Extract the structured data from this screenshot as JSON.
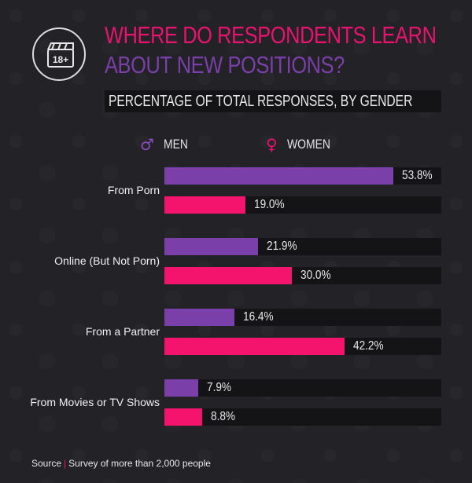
{
  "title_line1": "WHERE DO RESPONDENTS LEARN",
  "title_line2": "ABOUT NEW POSITIONS?",
  "subtitle": "PERCENTAGE OF TOTAL RESPONSES, BY GENDER",
  "icon": {
    "name": "clapperboard-18-icon",
    "text": "18+"
  },
  "legend": {
    "men": {
      "label": "MEN",
      "symbol": "♂",
      "color": "#7a3fa8"
    },
    "women": {
      "label": "WOMEN",
      "symbol": "♀",
      "color": "#f4146e"
    }
  },
  "source": {
    "label": "Source",
    "text": "Survey of more than 2,000 people"
  },
  "chart_data": {
    "type": "bar",
    "orientation": "horizontal",
    "title": "WHERE DO RESPONDENTS LEARN ABOUT NEW POSITIONS?",
    "subtitle": "PERCENTAGE OF TOTAL RESPONSES, BY GENDER",
    "categories": [
      "From Porn",
      "Online (But Not Porn)",
      "From a Partner",
      "From Movies or TV Shows"
    ],
    "series": [
      {
        "name": "MEN",
        "values": [
          53.8,
          21.9,
          16.4,
          7.9
        ],
        "labels": [
          "53.8%",
          "21.9%",
          "16.4%",
          "7.9%"
        ],
        "color": "#7a3fa8"
      },
      {
        "name": "WOMEN",
        "values": [
          19.0,
          30.0,
          42.2,
          8.8
        ],
        "labels": [
          "19.0%",
          "30.0%",
          "42.2%",
          "8.8%"
        ],
        "color": "#f4146e"
      }
    ],
    "xlim": [
      0,
      65
    ],
    "grid": false,
    "legend_position": "top"
  }
}
